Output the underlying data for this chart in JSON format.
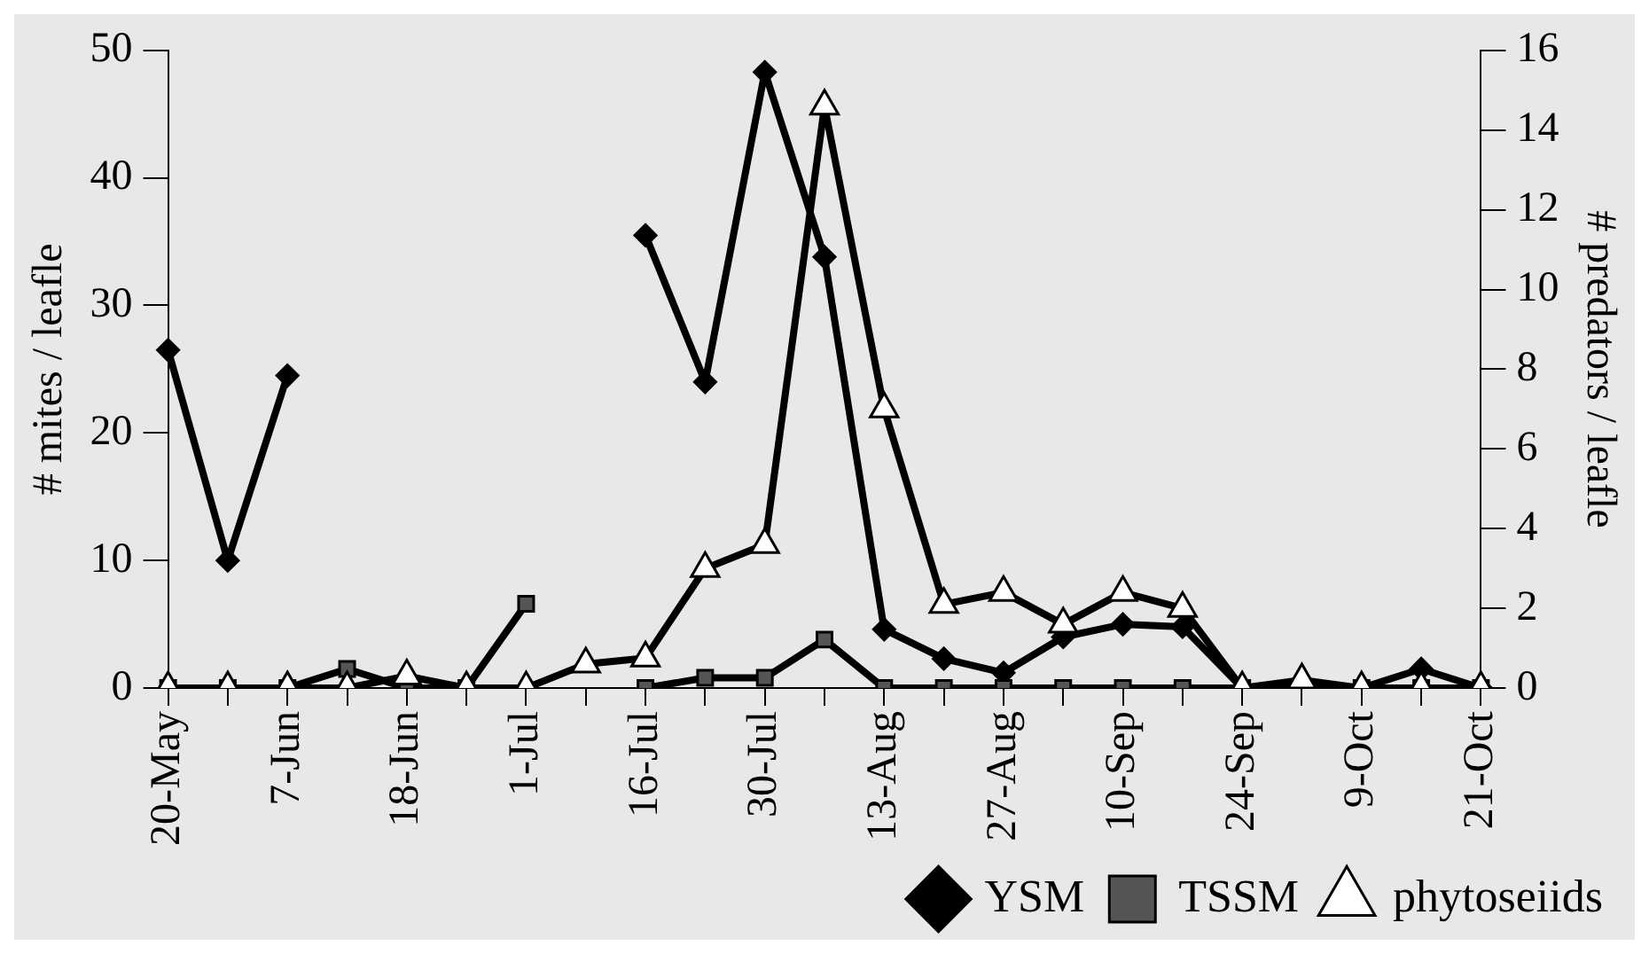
{
  "chart_data": {
    "type": "line",
    "ylabel": "# mites / leafle",
    "y2label": "# predators / leafle",
    "categories": [
      "20-May",
      null,
      "7-Jun",
      null,
      "18-Jun",
      null,
      "1-Jul",
      null,
      "16-Jul",
      null,
      "30-Jul",
      null,
      "13-Aug",
      null,
      "27-Aug",
      null,
      "10-Sep",
      null,
      "24-Sep",
      null,
      "9-Oct",
      null,
      "21-Oct"
    ],
    "series": [
      {
        "name": "YSM",
        "color": "#000000",
        "marker": "diamond",
        "values": [
          26.5,
          10,
          24.5,
          null,
          null,
          null,
          null,
          null,
          35.5,
          24,
          48.3,
          33.8,
          4.6,
          2.3,
          1.2,
          4,
          5,
          4.8,
          0,
          0.3,
          0,
          1.5,
          0
        ]
      },
      {
        "name": "TSSM",
        "color": "#000000",
        "marker": "square",
        "values": [
          0,
          0,
          0,
          1.5,
          0,
          0,
          6.6,
          null,
          0,
          0.8,
          0.8,
          3.8,
          0,
          0,
          0,
          0,
          0,
          0,
          0,
          0,
          0,
          0,
          0
        ]
      },
      {
        "name": "phytoseiids",
        "color": "#000000",
        "marker": "triangle",
        "axis": "y2",
        "values": [
          0,
          0,
          0,
          0,
          0.3,
          0,
          0,
          0.6,
          0.75,
          3,
          3.6,
          14.6,
          7,
          2.1,
          2.4,
          1.6,
          2.4,
          2,
          0,
          0.2,
          0,
          0,
          0
        ]
      }
    ],
    "ylim": [
      0,
      50
    ],
    "yticks": [
      0,
      10,
      20,
      30,
      40,
      50
    ],
    "y2lim": [
      0,
      16
    ],
    "y2ticks": [
      0,
      2,
      4,
      6,
      8,
      10,
      12,
      14,
      16
    ],
    "grid": false,
    "legend": "bottom"
  }
}
